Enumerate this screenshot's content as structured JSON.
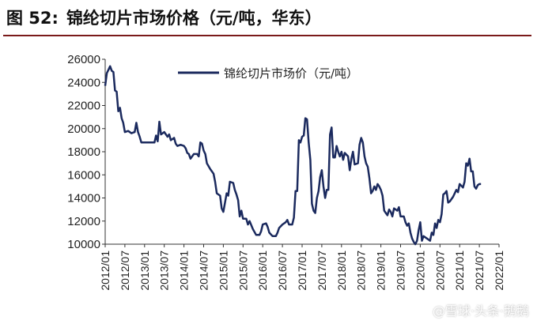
{
  "header": {
    "figure_no": "图 52:",
    "title": "锦纶切片市场价格（元/吨，华东）"
  },
  "watermark": "@雪球·头条·鹅鹅",
  "chart_data": {
    "type": "line",
    "title": "锦纶切片市场价格（元/吨，华东）",
    "xlabel": "",
    "ylabel": "",
    "ylim": [
      10000,
      26000
    ],
    "yticks": [
      10000,
      12000,
      14000,
      16000,
      18000,
      20000,
      22000,
      24000,
      26000
    ],
    "xlim": [
      0,
      120
    ],
    "xticks": [
      {
        "x": 0,
        "label": "2012/01"
      },
      {
        "x": 6,
        "label": "2012/07"
      },
      {
        "x": 12,
        "label": "2013/01"
      },
      {
        "x": 18,
        "label": "2013/07"
      },
      {
        "x": 24,
        "label": "2014/01"
      },
      {
        "x": 30,
        "label": "2014/07"
      },
      {
        "x": 36,
        "label": "2015/01"
      },
      {
        "x": 42,
        "label": "2015/07"
      },
      {
        "x": 48,
        "label": "2016/01"
      },
      {
        "x": 54,
        "label": "2016/07"
      },
      {
        "x": 60,
        "label": "2017/01"
      },
      {
        "x": 66,
        "label": "2017/07"
      },
      {
        "x": 72,
        "label": "2018/01"
      },
      {
        "x": 78,
        "label": "2018/07"
      },
      {
        "x": 84,
        "label": "2019/01"
      },
      {
        "x": 90,
        "label": "2019/07"
      },
      {
        "x": 96,
        "label": "2020/01"
      },
      {
        "x": 102,
        "label": "2020/07"
      },
      {
        "x": 108,
        "label": "2021/01"
      },
      {
        "x": 114,
        "label": "2021/07"
      },
      {
        "x": 120,
        "label": "2022/01"
      }
    ],
    "grid": false,
    "legend": "top-center",
    "series_color": "#1b2a5e",
    "series": [
      {
        "name": "锦纶切片市场价（元/吨）",
        "points": [
          [
            0,
            23700
          ],
          [
            0.5,
            24800
          ],
          [
            1,
            25100
          ],
          [
            1.5,
            25400
          ],
          [
            2,
            25000
          ],
          [
            2.5,
            24900
          ],
          [
            3,
            23300
          ],
          [
            3.5,
            23200
          ],
          [
            4,
            21500
          ],
          [
            4.5,
            21800
          ],
          [
            5,
            20900
          ],
          [
            5.5,
            20500
          ],
          [
            6,
            19700
          ],
          [
            7,
            19800
          ],
          [
            8,
            19600
          ],
          [
            9,
            19700
          ],
          [
            9.5,
            20500
          ],
          [
            10,
            19700
          ],
          [
            10.5,
            19300
          ],
          [
            11,
            18800
          ],
          [
            13,
            18800
          ],
          [
            15,
            18800
          ],
          [
            15.5,
            19400
          ],
          [
            16,
            18900
          ],
          [
            16.5,
            20600
          ],
          [
            17,
            19500
          ],
          [
            18,
            19700
          ],
          [
            19,
            19300
          ],
          [
            19.5,
            19500
          ],
          [
            20,
            19000
          ],
          [
            21,
            19200
          ],
          [
            21.5,
            18700
          ],
          [
            22,
            18500
          ],
          [
            23,
            18600
          ],
          [
            24,
            18500
          ],
          [
            24.5,
            18300
          ],
          [
            25,
            17900
          ],
          [
            25.5,
            17800
          ],
          [
            26,
            17400
          ],
          [
            27,
            17800
          ],
          [
            28,
            17800
          ],
          [
            28.5,
            17600
          ],
          [
            29,
            18800
          ],
          [
            29.5,
            18700
          ],
          [
            30,
            18100
          ],
          [
            30.5,
            17800
          ],
          [
            31,
            17000
          ],
          [
            32,
            16500
          ],
          [
            33,
            16100
          ],
          [
            33.5,
            15400
          ],
          [
            34,
            14400
          ],
          [
            35,
            14200
          ],
          [
            35.5,
            13100
          ],
          [
            36,
            12800
          ],
          [
            36.5,
            13600
          ],
          [
            37,
            14400
          ],
          [
            37.5,
            14200
          ],
          [
            38,
            15400
          ],
          [
            39,
            15300
          ],
          [
            39.5,
            14700
          ],
          [
            40,
            14300
          ],
          [
            40.5,
            13800
          ],
          [
            41,
            12400
          ],
          [
            41.5,
            12900
          ],
          [
            42,
            12200
          ],
          [
            43,
            12200
          ],
          [
            43.5,
            11700
          ],
          [
            44,
            12000
          ],
          [
            45,
            11300
          ],
          [
            46,
            10800
          ],
          [
            47,
            10800
          ],
          [
            47.5,
            11100
          ],
          [
            48,
            11700
          ],
          [
            49,
            11800
          ],
          [
            49.5,
            11500
          ],
          [
            50,
            11000
          ],
          [
            51,
            10700
          ],
          [
            52,
            10700
          ],
          [
            52.5,
            11000
          ],
          [
            53,
            11400
          ],
          [
            54,
            11700
          ],
          [
            55,
            11900
          ],
          [
            55.5,
            12100
          ],
          [
            56,
            11700
          ],
          [
            57,
            11700
          ],
          [
            57.5,
            12300
          ],
          [
            58,
            14600
          ],
          [
            58.5,
            14600
          ],
          [
            59,
            19000
          ],
          [
            59.5,
            18800
          ],
          [
            60,
            19300
          ],
          [
            60.5,
            19400
          ],
          [
            61,
            20900
          ],
          [
            61.5,
            20800
          ],
          [
            62,
            18800
          ],
          [
            62.5,
            17300
          ],
          [
            63,
            13500
          ],
          [
            63.5,
            12900
          ],
          [
            64,
            12700
          ],
          [
            64.5,
            14000
          ],
          [
            65,
            14600
          ],
          [
            65.5,
            15800
          ],
          [
            66,
            16400
          ],
          [
            66.5,
            15000
          ],
          [
            67,
            14000
          ],
          [
            67.5,
            14700
          ],
          [
            68,
            14700
          ],
          [
            68.5,
            19500
          ],
          [
            69,
            20100
          ],
          [
            69.5,
            17500
          ],
          [
            70,
            17500
          ],
          [
            70.5,
            18500
          ],
          [
            71,
            18000
          ],
          [
            71.5,
            17600
          ],
          [
            72,
            18000
          ],
          [
            72.5,
            17300
          ],
          [
            73,
            17900
          ],
          [
            74,
            17600
          ],
          [
            74.5,
            16400
          ],
          [
            75,
            17400
          ],
          [
            75.5,
            18000
          ],
          [
            76,
            16900
          ],
          [
            77,
            17000
          ],
          [
            77.5,
            18600
          ],
          [
            78,
            19200
          ],
          [
            78.5,
            18800
          ],
          [
            79,
            17600
          ],
          [
            79.5,
            17000
          ],
          [
            80,
            16700
          ],
          [
            80.5,
            15700
          ],
          [
            81,
            14400
          ],
          [
            81.5,
            14600
          ],
          [
            82,
            15000
          ],
          [
            82.5,
            14700
          ],
          [
            83,
            15200
          ],
          [
            83.5,
            15000
          ],
          [
            84,
            14700
          ],
          [
            84.5,
            14200
          ],
          [
            85,
            12900
          ],
          [
            85.5,
            12700
          ],
          [
            86,
            12500
          ],
          [
            86.5,
            13000
          ],
          [
            87,
            12800
          ],
          [
            87.5,
            12400
          ],
          [
            88,
            13100
          ],
          [
            89,
            12900
          ],
          [
            89.5,
            13200
          ],
          [
            90,
            12400
          ],
          [
            91,
            12400
          ],
          [
            91.5,
            11900
          ],
          [
            92,
            11600
          ],
          [
            92.5,
            11800
          ],
          [
            93,
            11000
          ],
          [
            93.5,
            10500
          ],
          [
            94,
            10200
          ],
          [
            94.5,
            9800
          ],
          [
            95,
            10300
          ],
          [
            95.5,
            11200
          ],
          [
            96,
            11900
          ],
          [
            96.5,
            10300
          ],
          [
            97,
            10700
          ],
          [
            98,
            10500
          ],
          [
            99,
            10300
          ],
          [
            99.5,
            11000
          ],
          [
            100,
            10800
          ],
          [
            100.5,
            11800
          ],
          [
            101,
            11400
          ],
          [
            101.5,
            12100
          ],
          [
            102,
            11900
          ],
          [
            102.5,
            12600
          ],
          [
            103,
            14300
          ],
          [
            103.5,
            14400
          ],
          [
            104,
            14600
          ],
          [
            104.5,
            13600
          ],
          [
            105,
            13700
          ],
          [
            106,
            14100
          ],
          [
            106.5,
            14400
          ],
          [
            107,
            14700
          ],
          [
            107.5,
            14500
          ],
          [
            108,
            15200
          ],
          [
            109,
            14900
          ],
          [
            109.5,
            15400
          ],
          [
            110,
            17000
          ],
          [
            110.5,
            16800
          ],
          [
            111,
            17400
          ],
          [
            111.5,
            16300
          ],
          [
            112,
            16300
          ],
          [
            112.5,
            15000
          ],
          [
            113,
            14800
          ],
          [
            113.5,
            15100
          ],
          [
            114,
            15200
          ],
          [
            114.5,
            15200
          ]
        ]
      }
    ]
  }
}
